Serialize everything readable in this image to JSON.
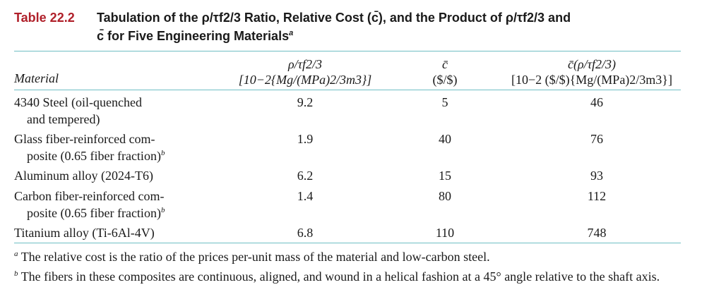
{
  "caption": {
    "label": "Table 22.2",
    "line1": "Tabulation of the ρ/τf2/3 Ratio, Relative Cost (c̄), and the Product of ρ/τf2/3 and",
    "line2": "c̄ for Five Engineering Materials",
    "line2_sup": "a"
  },
  "headers": {
    "material": "Material",
    "col1_line1": "ρ/τf2/3",
    "col1_line2": "[10−2{Mg/(MPa)2/3m3}]",
    "col2_line1": "c̄",
    "col2_line2": "($/$)",
    "col3_line1": "c̄(ρ/τf2/3)",
    "col3_line2": "[10−2 ($/$){Mg/(MPa)2/3m3}]"
  },
  "rows": [
    {
      "material": "4340 Steel (oil-quenched",
      "material_cont": "and tempered)",
      "sup": "",
      "ratio": "9.2",
      "cost": "5",
      "product": "46"
    },
    {
      "material": "Glass fiber-reinforced com-",
      "material_cont": "posite (0.65 fiber fraction)",
      "sup": "b",
      "ratio": "1.9",
      "cost": "40",
      "product": "76"
    },
    {
      "material": "Aluminum alloy (2024-T6)",
      "material_cont": "",
      "sup": "",
      "ratio": "6.2",
      "cost": "15",
      "product": "93"
    },
    {
      "material": "Carbon fiber-reinforced com-",
      "material_cont": "posite (0.65 fiber fraction)",
      "sup": "b",
      "ratio": "1.4",
      "cost": "80",
      "product": "112"
    },
    {
      "material": "Titanium alloy (Ti-6Al-4V)",
      "material_cont": "",
      "sup": "",
      "ratio": "6.8",
      "cost": "110",
      "product": "748"
    }
  ],
  "footnotes": {
    "a_mark": "a",
    "a_text": "The relative cost is the ratio of the prices per-unit mass of the material and low-carbon steel.",
    "b_mark": "b",
    "b_text": "The fibers in these composites are continuous, aligned, and wound in a helical fashion at a 45° angle relative to the shaft axis."
  },
  "colors": {
    "label": "#b0202a",
    "rule": "#6fbfc4"
  }
}
